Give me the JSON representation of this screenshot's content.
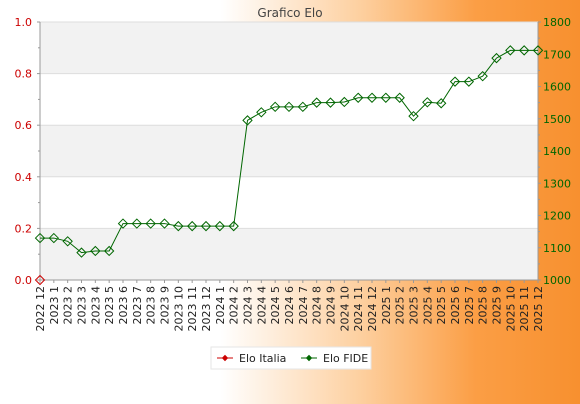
{
  "chart_data": {
    "type": "line",
    "title": "Grafico Elo",
    "categories": [
      "2022 12",
      "2023 1",
      "2023 2",
      "2023 3",
      "2023 4",
      "2023 5",
      "2023 6",
      "2023 7",
      "2023 8",
      "2023 9",
      "2023 10",
      "2023 11",
      "2023 12",
      "2024 1",
      "2024 2",
      "2024 3",
      "2024 4",
      "2024 5",
      "2024 6",
      "2024 7",
      "2024 8",
      "2024 9",
      "2024 10",
      "2024 11",
      "2024 12",
      "2025 1",
      "2025 2",
      "2025 3",
      "2025 4",
      "2025 5",
      "2025 6",
      "2025 7",
      "2025 8",
      "2025 9",
      "2025 10",
      "2025 11",
      "2025 12"
    ],
    "y_left": {
      "ylim": [
        0,
        1.0
      ],
      "ticks": [
        "0.0",
        "0.2",
        "0.4",
        "0.6",
        "0.8",
        "1.0"
      ],
      "color": "#cc0000"
    },
    "y_right": {
      "ylim": [
        1000,
        1800
      ],
      "ticks": [
        "1000",
        "1100",
        "1200",
        "1300",
        "1400",
        "1500",
        "1600",
        "1700",
        "1800"
      ],
      "color": "#006600"
    },
    "grid": true,
    "legend_position": "bottom",
    "series": [
      {
        "name": "Elo Italia",
        "axis": "left",
        "color": "#cc0000",
        "marker": "diamond",
        "values": [
          0,
          null,
          null,
          null,
          null,
          null,
          null,
          null,
          null,
          null,
          null,
          null,
          null,
          null,
          null,
          null,
          null,
          null,
          null,
          null,
          null,
          null,
          null,
          null,
          null,
          null,
          null,
          null,
          null,
          null,
          null,
          null,
          null,
          null,
          null,
          null,
          null
        ]
      },
      {
        "name": "Elo FIDE",
        "axis": "right",
        "color": "#006600",
        "marker": "diamond",
        "values": [
          1130,
          1130,
          1120,
          1085,
          1090,
          1090,
          1175,
          1175,
          1175,
          1175,
          1167,
          1167,
          1167,
          1167,
          1167,
          1495,
          1520,
          1537,
          1537,
          1537,
          1550,
          1550,
          1552,
          1565,
          1565,
          1565,
          1565,
          1508,
          1551,
          1548,
          1615,
          1615,
          1632,
          1688,
          1712,
          1712,
          1712
        ]
      }
    ]
  }
}
